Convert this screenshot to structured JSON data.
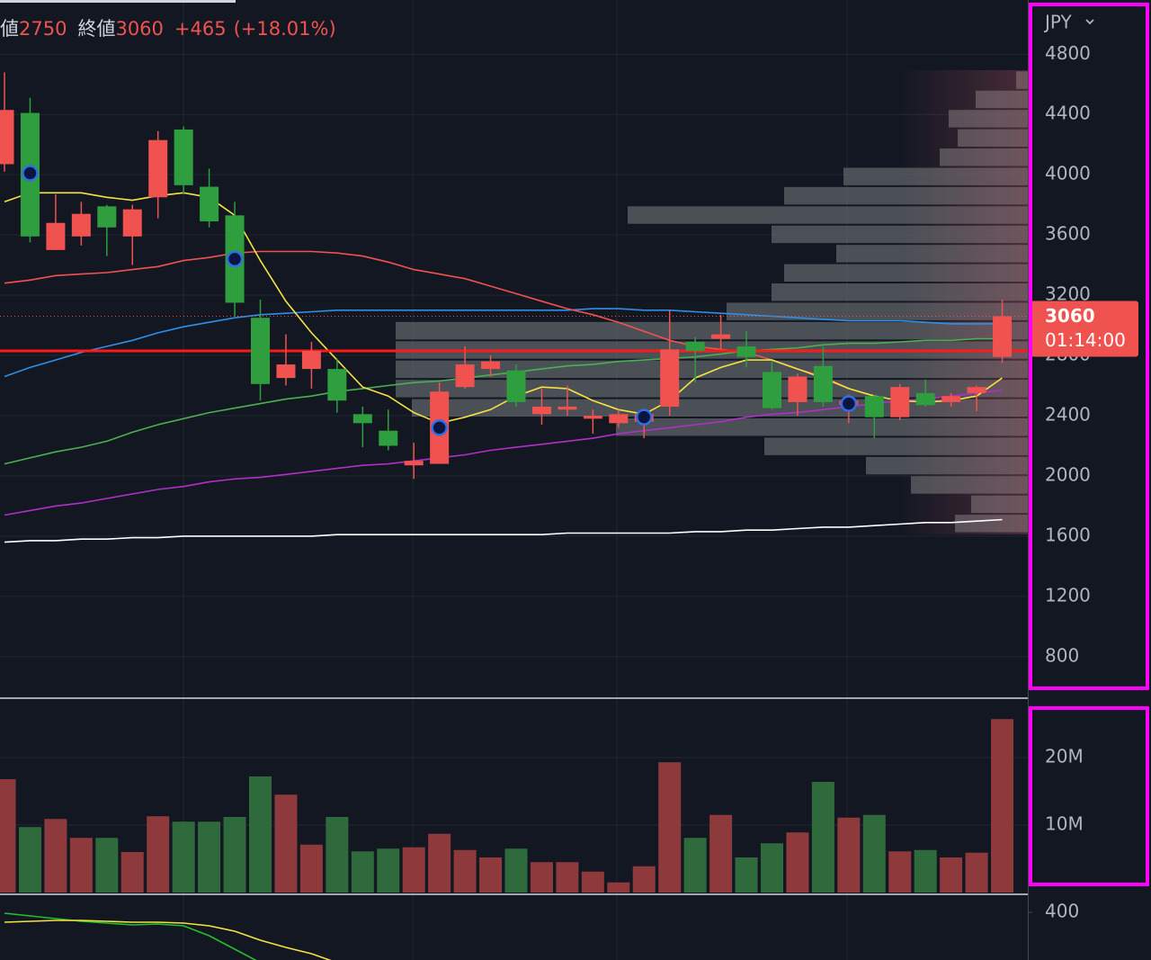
{
  "header": {
    "low_label": "値",
    "low": 2750,
    "close_label": "終値",
    "close": 3060,
    "change": "+465",
    "change_pct": "(+18.01%)"
  },
  "chart_data": [
    {
      "type": "candlestick",
      "currency": "JPY",
      "ylim": [
        530,
        5160
      ],
      "yticks": [
        4800,
        4400,
        4000,
        3600,
        3200,
        2800,
        2400,
        2000,
        1600,
        1200,
        800
      ],
      "up_color": "#f0524f",
      "down_color": "#2e9e3e",
      "grid": true,
      "open": [
        4070,
        4410,
        3500,
        3590,
        3790,
        3590,
        3850,
        4300,
        3920,
        3730,
        3050,
        2650,
        2710,
        2710,
        2410,
        2300,
        2070,
        2080,
        2590,
        2710,
        2700,
        2410,
        2440,
        2380,
        2350,
        2360,
        2460,
        2890,
        2910,
        2860,
        2690,
        2490,
        2730,
        2470,
        2530,
        2390,
        2550,
        2490,
        2550,
        2790
      ],
      "high": [
        4680,
        4510,
        3870,
        3820,
        3800,
        3800,
        4290,
        4320,
        4040,
        3820,
        3170,
        2940,
        2890,
        2780,
        2460,
        2440,
        2220,
        2620,
        2860,
        2800,
        2740,
        2580,
        2600,
        2440,
        2440,
        2440,
        3100,
        2920,
        3070,
        2960,
        2760,
        2680,
        2860,
        2540,
        2540,
        2610,
        2640,
        2550,
        2600,
        3170
      ],
      "low": [
        4020,
        3550,
        3500,
        3530,
        3460,
        3400,
        3710,
        3870,
        3650,
        3060,
        2500,
        2600,
        2580,
        2420,
        2190,
        2170,
        1980,
        2080,
        2580,
        2660,
        2460,
        2340,
        2400,
        2280,
        2320,
        2250,
        2400,
        2620,
        2840,
        2720,
        2440,
        2400,
        2460,
        2350,
        2250,
        2370,
        2460,
        2460,
        2430,
        2750
      ],
      "close": [
        4430,
        3590,
        3680,
        3740,
        3650,
        3770,
        4230,
        3930,
        3690,
        3150,
        2610,
        2740,
        2830,
        2500,
        2350,
        2200,
        2100,
        2560,
        2740,
        2760,
        2490,
        2460,
        2460,
        2400,
        2410,
        2410,
        2840,
        2830,
        2940,
        2790,
        2450,
        2660,
        2490,
        2500,
        2390,
        2590,
        2470,
        2530,
        2590,
        3060
      ],
      "series": [
        {
          "color": "#ffffff",
          "values": [
            1560,
            1570,
            1570,
            1580,
            1580,
            1590,
            1590,
            1600,
            1600,
            1600,
            1600,
            1600,
            1600,
            1610,
            1610,
            1610,
            1610,
            1610,
            1610,
            1610,
            1610,
            1610,
            1620,
            1620,
            1620,
            1620,
            1620,
            1630,
            1630,
            1640,
            1640,
            1650,
            1660,
            1660,
            1670,
            1680,
            1690,
            1690,
            1700,
            1710
          ]
        },
        {
          "color": "#b02fc9",
          "values": [
            1740,
            1770,
            1800,
            1820,
            1850,
            1880,
            1910,
            1930,
            1960,
            1980,
            1990,
            2010,
            2030,
            2050,
            2070,
            2080,
            2100,
            2120,
            2140,
            2170,
            2190,
            2210,
            2230,
            2250,
            2280,
            2300,
            2320,
            2340,
            2360,
            2390,
            2410,
            2420,
            2440,
            2460,
            2480,
            2500,
            2510,
            2530,
            2550,
            2570
          ]
        },
        {
          "color": "#4caf50",
          "values": [
            2080,
            2120,
            2160,
            2190,
            2230,
            2290,
            2340,
            2380,
            2420,
            2450,
            2480,
            2510,
            2530,
            2560,
            2580,
            2600,
            2620,
            2630,
            2650,
            2670,
            2690,
            2710,
            2730,
            2740,
            2760,
            2770,
            2780,
            2790,
            2810,
            2830,
            2840,
            2850,
            2870,
            2880,
            2880,
            2890,
            2900,
            2900,
            2910,
            2910
          ]
        },
        {
          "color": "#2f8fe8",
          "values": [
            2660,
            2720,
            2770,
            2820,
            2860,
            2900,
            2950,
            2990,
            3020,
            3050,
            3070,
            3080,
            3090,
            3100,
            3100,
            3100,
            3100,
            3100,
            3100,
            3100,
            3100,
            3100,
            3100,
            3110,
            3110,
            3100,
            3100,
            3090,
            3080,
            3070,
            3060,
            3050,
            3040,
            3030,
            3030,
            3030,
            3020,
            3010,
            3010,
            3010
          ]
        },
        {
          "color": "#f0524f",
          "values": [
            3280,
            3300,
            3330,
            3340,
            3350,
            3370,
            3390,
            3430,
            3450,
            3480,
            3490,
            3490,
            3490,
            3480,
            3460,
            3420,
            3370,
            3340,
            3310,
            3260,
            3210,
            3160,
            3110,
            3070,
            3020,
            2960,
            2900,
            2860,
            2840,
            2820,
            2770,
            2710,
            2660,
            2580,
            2530,
            null,
            null,
            null,
            null,
            null
          ]
        },
        {
          "color": "#f5e342",
          "values": [
            3820,
            3880,
            3880,
            3880,
            3850,
            3830,
            3860,
            3880,
            3850,
            3730,
            3430,
            3160,
            2950,
            2770,
            2590,
            2530,
            2420,
            2350,
            2390,
            2440,
            2530,
            2590,
            2580,
            2500,
            2440,
            2410,
            2500,
            2650,
            2720,
            2770,
            2770,
            2710,
            2650,
            2580,
            2530,
            2500,
            2490,
            2500,
            2530,
            2650
          ]
        }
      ],
      "volume_profile": {
        "color": "#5d6468",
        "bins": [
          1620,
          1748,
          1876,
          2004,
          2132,
          2260,
          2388,
          2516,
          2644,
          2772,
          2900,
          3028,
          3156,
          3284,
          3412,
          3540,
          3668,
          3796,
          3924,
          4052,
          4180,
          4308,
          4436,
          4564,
          4692
        ],
        "values": [
          81,
          63,
          130,
          180,
          293,
          458,
          685,
          703,
          703,
          703,
          703,
          335,
          285,
          271,
          213,
          285,
          445,
          271,
          205,
          98,
          78,
          88,
          58,
          13
        ]
      },
      "signals": [
        {
          "index": 1,
          "value": 4010
        },
        {
          "index": 9,
          "value": 3440
        },
        {
          "index": 17,
          "value": 2320
        },
        {
          "index": 25,
          "value": 2390
        },
        {
          "index": 33,
          "value": 2480
        }
      ],
      "hline": 2830,
      "hline_color": "#ff1a1a",
      "last_price": 3060,
      "countdown": "01:14:00"
    },
    {
      "type": "bar",
      "ylim": [
        0,
        27.6
      ],
      "yticks": [
        {
          "value": 20,
          "label": "20M"
        },
        {
          "value": 10,
          "label": "10M"
        }
      ],
      "up_color": "#8e3a3c",
      "down_color": "#2f6a3c",
      "values": [
        16.8,
        9.7,
        10.9,
        8.1,
        8.1,
        6.0,
        11.3,
        10.5,
        10.5,
        11.2,
        17.2,
        14.5,
        7.1,
        11.2,
        6.1,
        6.5,
        6.7,
        8.7,
        6.3,
        5.2,
        6.5,
        4.5,
        4.5,
        3.1,
        1.5,
        3.9,
        19.3,
        8.1,
        11.5,
        5.2,
        7.3,
        8.9,
        16.4,
        11.1,
        11.5,
        6.1,
        6.3,
        5.2,
        5.9,
        25.7
      ]
    },
    {
      "type": "line",
      "ylim": [
        347,
        419
      ],
      "yticks": [
        400
      ],
      "series": [
        {
          "color": "#22c02a",
          "values": [
            399,
            396,
            393,
            390,
            388,
            386,
            387,
            385,
            374,
            359,
            344,
            null,
            null,
            null,
            null,
            null,
            null,
            null,
            null,
            null,
            null,
            null,
            null,
            null,
            null,
            null,
            null,
            null,
            null,
            null,
            null,
            null,
            null,
            null,
            null,
            null,
            null,
            null,
            null,
            null
          ]
        },
        {
          "color": "#f5e342",
          "values": [
            389,
            390,
            391,
            391,
            390,
            389,
            389,
            388,
            385,
            379,
            369,
            361,
            354,
            344,
            null,
            null,
            null,
            null,
            null,
            null,
            null,
            null,
            null,
            null,
            null,
            null,
            null,
            null,
            null,
            null,
            null,
            null,
            null,
            null,
            null,
            null,
            null,
            null,
            null,
            null
          ]
        }
      ]
    }
  ]
}
